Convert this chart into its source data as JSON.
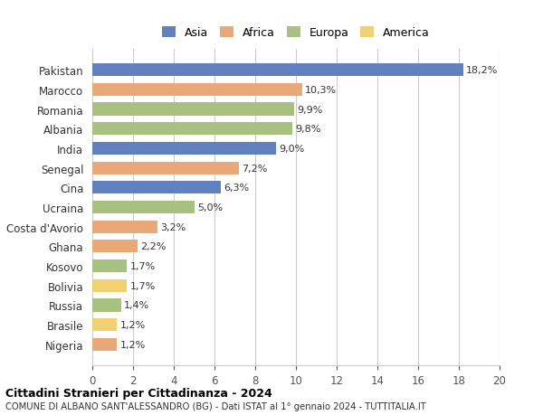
{
  "countries": [
    "Pakistan",
    "Marocco",
    "Romania",
    "Albania",
    "India",
    "Senegal",
    "Cina",
    "Ucraina",
    "Costa d'Avorio",
    "Ghana",
    "Kosovo",
    "Bolivia",
    "Russia",
    "Brasile",
    "Nigeria"
  ],
  "values": [
    18.2,
    10.3,
    9.9,
    9.8,
    9.0,
    7.2,
    6.3,
    5.0,
    3.2,
    2.2,
    1.7,
    1.7,
    1.4,
    1.2,
    1.2
  ],
  "labels": [
    "18,2%",
    "10,3%",
    "9,9%",
    "9,8%",
    "9,0%",
    "7,2%",
    "6,3%",
    "5,0%",
    "3,2%",
    "2,2%",
    "1,7%",
    "1,7%",
    "1,4%",
    "1,2%",
    "1,2%"
  ],
  "continents": [
    "Asia",
    "Africa",
    "Europa",
    "Europa",
    "Asia",
    "Africa",
    "Asia",
    "Europa",
    "Africa",
    "Africa",
    "Europa",
    "America",
    "Europa",
    "America",
    "Africa"
  ],
  "colors": {
    "Asia": "#6080C0",
    "Africa": "#E8A878",
    "Europa": "#A8C080",
    "America": "#F0D070"
  },
  "xlim": [
    0,
    20
  ],
  "xticks": [
    0,
    2,
    4,
    6,
    8,
    10,
    12,
    14,
    16,
    18,
    20
  ],
  "title1": "Cittadini Stranieri per Cittadinanza - 2024",
  "title2": "COMUNE DI ALBANO SANT'ALESSANDRO (BG) - Dati ISTAT al 1° gennaio 2024 - TUTTITALIA.IT",
  "legend_order": [
    "Asia",
    "Africa",
    "Europa",
    "America"
  ],
  "background_color": "#ffffff",
  "grid_color": "#cccccc"
}
